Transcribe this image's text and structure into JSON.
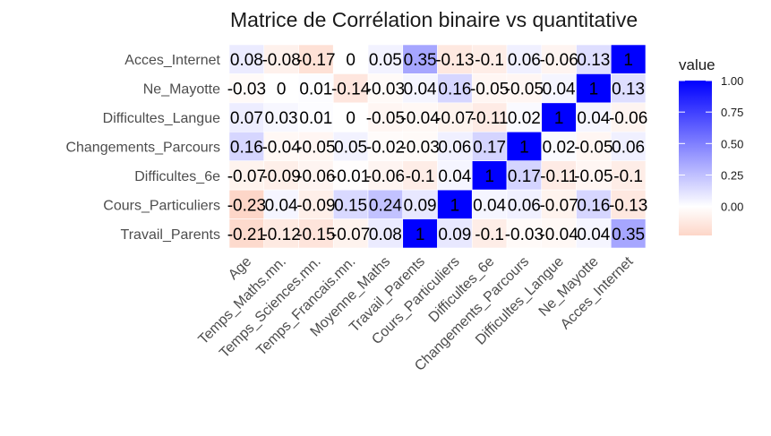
{
  "chart_data": {
    "type": "heatmap",
    "title": "Matrice de Corrélation binaire vs quantitative",
    "xlabel": "",
    "ylabel": "",
    "x": [
      "Age",
      "Temps_Maths.mn.",
      "Temps_Sciences.mn.",
      "Temps_Francais.mn.",
      "Moyenne_Maths",
      "Travail_Parents",
      "Cours_Particuliers",
      "Difficultes_6e",
      "Changements_Parcours",
      "Difficultes_Langue",
      "Ne_Mayotte",
      "Acces_Internet"
    ],
    "y": [
      "Acces_Internet",
      "Ne_Mayotte",
      "Difficultes_Langue",
      "Changements_Parcours",
      "Difficultes_6e",
      "Cours_Particuliers",
      "Travail_Parents"
    ],
    "values": [
      [
        0.08,
        -0.08,
        -0.17,
        0,
        0.05,
        0.35,
        -0.13,
        -0.1,
        0.06,
        -0.06,
        0.13,
        1
      ],
      [
        -0.03,
        0,
        0.01,
        -0.14,
        -0.03,
        0.04,
        0.16,
        -0.05,
        -0.05,
        0.04,
        1,
        0.13
      ],
      [
        0.07,
        0.03,
        0.01,
        0,
        -0.05,
        -0.04,
        -0.07,
        -0.11,
        0.02,
        1,
        0.04,
        -0.06
      ],
      [
        0.16,
        -0.04,
        -0.05,
        0.05,
        -0.02,
        -0.03,
        0.06,
        0.17,
        1,
        0.02,
        -0.05,
        0.06
      ],
      [
        -0.07,
        -0.09,
        -0.06,
        -0.01,
        -0.06,
        -0.1,
        0.04,
        1,
        0.17,
        -0.11,
        -0.05,
        -0.1
      ],
      [
        -0.23,
        0.04,
        -0.09,
        0.15,
        0.24,
        0.09,
        1,
        0.04,
        0.06,
        -0.07,
        0.16,
        -0.13
      ],
      [
        -0.21,
        -0.12,
        -0.15,
        -0.07,
        0.08,
        1,
        0.09,
        -0.1,
        -0.03,
        -0.04,
        0.04,
        0.35
      ]
    ],
    "labels": [
      [
        "0.08",
        "-0.08",
        "-0.17",
        "0",
        "0.05",
        "0.35",
        "-0.13",
        "-0.1",
        "0.06",
        "-0.06",
        "0.13",
        "1"
      ],
      [
        "-0.03",
        "0",
        "0.01",
        "-0.14",
        "-0.03",
        "0.04",
        "0.16",
        "-0.05",
        "-0.05",
        "0.04",
        "1",
        "0.13"
      ],
      [
        "0.07",
        "0.03",
        "0.01",
        "0",
        "-0.05",
        "-0.04",
        "-0.07",
        "-0.11",
        "0.02",
        "1",
        "0.04",
        "-0.06"
      ],
      [
        "0.16",
        "-0.04",
        "-0.05",
        "0.05",
        "-0.02",
        "-0.03",
        "0.06",
        "0.17",
        "1",
        "0.02",
        "-0.05",
        "0.06"
      ],
      [
        "-0.07",
        "-0.09",
        "-0.06",
        "-0.01",
        "-0.06",
        "-0.1",
        "0.04",
        "1",
        "0.17",
        "-0.11",
        "-0.05",
        "-0.1"
      ],
      [
        "-0.23",
        "0.04",
        "-0.09",
        "0.15",
        "0.24",
        "0.09",
        "1",
        "0.04",
        "0.06",
        "-0.07",
        "0.16",
        "-0.13"
      ],
      [
        "-0.21",
        "-0.12",
        "-0.15",
        "-0.07",
        "0.08",
        "1",
        "0.09",
        "-0.1",
        "-0.03",
        "-0.04",
        "0.04",
        "0.35"
      ]
    ],
    "legend": {
      "title": "value",
      "ticks": [
        1.0,
        0.75,
        0.5,
        0.25,
        0.0
      ],
      "tick_labels": [
        "1.00",
        "0.75",
        "0.50",
        "0.25",
        "0.00"
      ],
      "range": [
        -0.23,
        1
      ],
      "placement": "right"
    },
    "colors": {
      "low": "#fdd6c8",
      "mid": "#ffffff",
      "high": "#0000ff"
    },
    "grid": false
  }
}
